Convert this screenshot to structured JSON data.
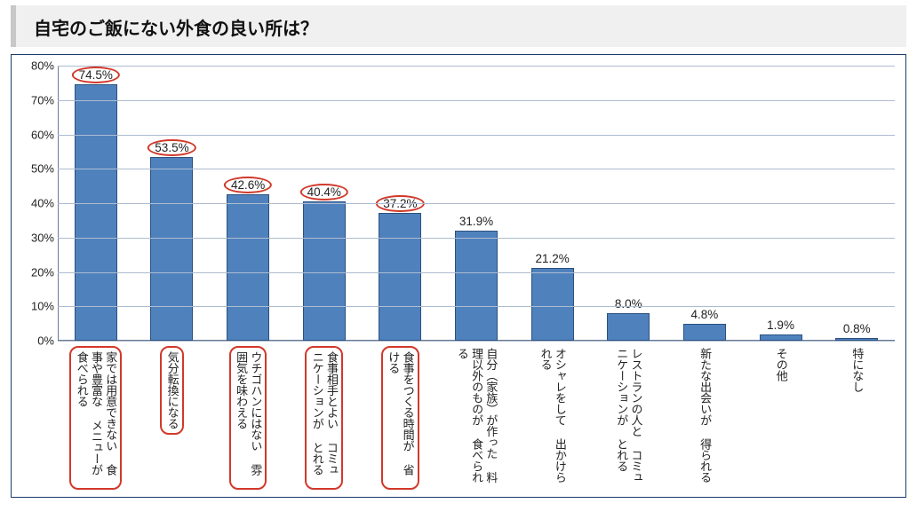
{
  "title": "自宅のご飯にない外食の良い所は？",
  "chart": {
    "type": "bar",
    "ylim": [
      0,
      80
    ],
    "ytick_step": 10,
    "ytick_suffix": "%",
    "value_suffix": "%",
    "bar_color": "#4f81bd",
    "bar_border_color": "#2a507e",
    "grid_color": "#aebcd0",
    "highlight_color": "#d1392a",
    "background_color": "#ffffff",
    "frame_color": "#1a3a6a",
    "label_fontsize": 13,
    "value_fontsize": 13.5,
    "bar_width": 0.56,
    "categories": [
      {
        "label": "家では用意できない\n食事や豊富な\nメニューが食べられる",
        "value": 74.5,
        "highlighted": true
      },
      {
        "label": "気分転換になる",
        "value": 53.5,
        "highlighted": true
      },
      {
        "label": "ウチゴハンにはない\n雰囲気を味わえる",
        "value": 42.6,
        "highlighted": true
      },
      {
        "label": "食事相手とよい\nコミュニケーションが\nとれる",
        "value": 40.4,
        "highlighted": true
      },
      {
        "label": "食事をつくる時間が\n省ける",
        "value": 37.2,
        "highlighted": true
      },
      {
        "label": "自分（家族）が作った\n料理以外のものが\n食べられる",
        "value": 31.9,
        "highlighted": false
      },
      {
        "label": "オシャレをして\n出かけられる",
        "value": 21.2,
        "highlighted": false
      },
      {
        "label": "レストランの人と\nコミュニケーションが\nとれる",
        "value": 8.0,
        "highlighted": false
      },
      {
        "label": "新たな出会いが\n得られる",
        "value": 4.8,
        "highlighted": false
      },
      {
        "label": "その他",
        "value": 1.9,
        "highlighted": false
      },
      {
        "label": "特になし",
        "value": 0.8,
        "highlighted": false
      }
    ]
  }
}
